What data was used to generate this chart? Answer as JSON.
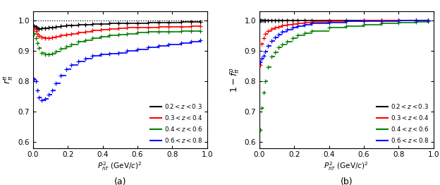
{
  "xlim": [
    0,
    1.0
  ],
  "ylim": [
    0.58,
    1.03
  ],
  "xlabel": "$P_{hT}^{2}$ (GeV/$c$)$^{2}$",
  "ylabel_a": "$r_{\\pi}^{\\pi}$",
  "ylabel_b": "$1-f_{\\pi}^{\\rho}$",
  "label_a": "(a)",
  "label_b": "(b)",
  "legend_labels": [
    "$0.2 < z < 0.3$",
    "$0.3 < z < 0.4$",
    "$0.4 < z < 0.6$",
    "$0.6 <  z < 0.8$"
  ],
  "colors": [
    "black",
    "red",
    "green",
    "blue"
  ],
  "yticks": [
    0.6,
    0.7,
    0.8,
    0.9,
    1.0
  ],
  "xticks": [
    0,
    0.2,
    0.4,
    0.6,
    0.8,
    1.0
  ],
  "a_x0": [
    0.005,
    0.015,
    0.025,
    0.035,
    0.05,
    0.07,
    0.09,
    0.11,
    0.13,
    0.16,
    0.19,
    0.22,
    0.26,
    0.3,
    0.34,
    0.39,
    0.44,
    0.49,
    0.54,
    0.6,
    0.66,
    0.72,
    0.78,
    0.85,
    0.91,
    0.96
  ],
  "a_y0": [
    0.98,
    0.978,
    0.973,
    0.971,
    0.973,
    0.974,
    0.976,
    0.977,
    0.979,
    0.981,
    0.983,
    0.984,
    0.985,
    0.986,
    0.987,
    0.988,
    0.989,
    0.99,
    0.991,
    0.991,
    0.992,
    0.992,
    0.993,
    0.994,
    0.994,
    0.995
  ],
  "a_x1": [
    0.005,
    0.015,
    0.025,
    0.035,
    0.05,
    0.07,
    0.09,
    0.11,
    0.13,
    0.16,
    0.19,
    0.22,
    0.26,
    0.3,
    0.34,
    0.39,
    0.44,
    0.49,
    0.54,
    0.6,
    0.66,
    0.72,
    0.78,
    0.85,
    0.91,
    0.96
  ],
  "a_y1": [
    0.972,
    0.965,
    0.955,
    0.947,
    0.943,
    0.941,
    0.941,
    0.943,
    0.946,
    0.95,
    0.952,
    0.955,
    0.96,
    0.963,
    0.966,
    0.969,
    0.972,
    0.974,
    0.975,
    0.976,
    0.977,
    0.978,
    0.979,
    0.979,
    0.98,
    0.98
  ],
  "a_x2": [
    0.005,
    0.015,
    0.025,
    0.035,
    0.05,
    0.07,
    0.09,
    0.11,
    0.13,
    0.16,
    0.19,
    0.22,
    0.26,
    0.3,
    0.34,
    0.39,
    0.44,
    0.49,
    0.54,
    0.6,
    0.66,
    0.72,
    0.78,
    0.85,
    0.91,
    0.96
  ],
  "a_y2": [
    0.955,
    0.942,
    0.925,
    0.908,
    0.893,
    0.888,
    0.888,
    0.891,
    0.897,
    0.906,
    0.913,
    0.92,
    0.929,
    0.935,
    0.94,
    0.945,
    0.95,
    0.953,
    0.956,
    0.959,
    0.961,
    0.962,
    0.963,
    0.964,
    0.964,
    0.965
  ],
  "a_x3": [
    0.005,
    0.015,
    0.025,
    0.035,
    0.05,
    0.07,
    0.09,
    0.11,
    0.13,
    0.16,
    0.19,
    0.22,
    0.26,
    0.3,
    0.34,
    0.39,
    0.44,
    0.49,
    0.54,
    0.6,
    0.66,
    0.72,
    0.78,
    0.85,
    0.91,
    0.96
  ],
  "a_y3": [
    0.807,
    0.8,
    0.77,
    0.747,
    0.737,
    0.742,
    0.755,
    0.77,
    0.792,
    0.818,
    0.838,
    0.854,
    0.865,
    0.875,
    0.882,
    0.888,
    0.89,
    0.893,
    0.9,
    0.905,
    0.91,
    0.915,
    0.92,
    0.925,
    0.93,
    0.935
  ],
  "b_x0": [
    0.005,
    0.015,
    0.025,
    0.035,
    0.05,
    0.07,
    0.09,
    0.11,
    0.13,
    0.16,
    0.19,
    0.22,
    0.26,
    0.3,
    0.4,
    0.5,
    0.6,
    0.7,
    0.8,
    0.9,
    0.97
  ],
  "b_y0": [
    0.999,
    0.999,
    0.999,
    0.999,
    1.0,
    1.0,
    1.0,
    1.0,
    1.0,
    1.0,
    1.0,
    1.0,
    1.0,
    1.0,
    1.0,
    1.0,
    1.0,
    1.0,
    1.0,
    1.0,
    1.0
  ],
  "b_x1": [
    0.005,
    0.015,
    0.025,
    0.035,
    0.05,
    0.07,
    0.09,
    0.11,
    0.13,
    0.16,
    0.19,
    0.22,
    0.26,
    0.3,
    0.4,
    0.5,
    0.6,
    0.7,
    0.8,
    0.9,
    0.97
  ],
  "b_y1": [
    0.853,
    0.922,
    0.942,
    0.955,
    0.964,
    0.971,
    0.976,
    0.979,
    0.982,
    0.985,
    0.988,
    0.991,
    0.993,
    0.995,
    0.997,
    0.998,
    0.999,
    1.0,
    1.0,
    1.0,
    1.0
  ],
  "b_x2": [
    0.005,
    0.015,
    0.025,
    0.035,
    0.05,
    0.07,
    0.09,
    0.11,
    0.13,
    0.16,
    0.19,
    0.22,
    0.26,
    0.3,
    0.4,
    0.5,
    0.6,
    0.7,
    0.8,
    0.9,
    0.97
  ],
  "b_y2": [
    0.64,
    0.712,
    0.762,
    0.8,
    0.845,
    0.88,
    0.895,
    0.91,
    0.92,
    0.93,
    0.94,
    0.95,
    0.958,
    0.965,
    0.975,
    0.981,
    0.986,
    0.99,
    0.993,
    0.995,
    0.997
  ],
  "b_x3": [
    0.005,
    0.015,
    0.025,
    0.035,
    0.05,
    0.07,
    0.09,
    0.11,
    0.13,
    0.16,
    0.19,
    0.22,
    0.26,
    0.3,
    0.4,
    0.5,
    0.6,
    0.7,
    0.8,
    0.9,
    0.97
  ],
  "b_y3": [
    0.862,
    0.873,
    0.884,
    0.897,
    0.916,
    0.931,
    0.943,
    0.953,
    0.961,
    0.969,
    0.975,
    0.981,
    0.986,
    0.989,
    0.993,
    0.996,
    0.997,
    0.998,
    0.999,
    1.0,
    1.0
  ]
}
